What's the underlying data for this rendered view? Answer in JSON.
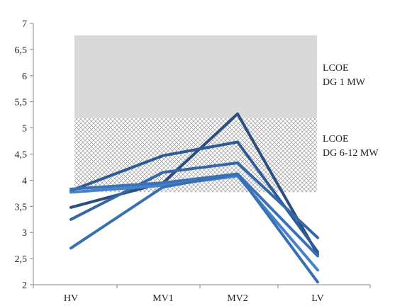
{
  "chart_data": {
    "type": "line",
    "title": "",
    "xlabel": "",
    "ylabel": "",
    "categories": [
      "HV",
      "MV1",
      "MV2",
      "LV"
    ],
    "ylim": [
      2,
      7
    ],
    "yticks": [
      "2",
      "2,5",
      "3",
      "3,5",
      "4",
      "4,5",
      "5",
      "5,5",
      "6",
      "6,5",
      "7"
    ],
    "grid": false,
    "series": [
      {
        "values": [
          3.48,
          3.95,
          5.27,
          2.58
        ],
        "color": "#2a4f7f"
      },
      {
        "values": [
          3.8,
          4.47,
          4.73,
          2.63
        ],
        "color": "#2e5b96"
      },
      {
        "values": [
          3.25,
          4.15,
          4.33,
          2.9
        ],
        "color": "#3566a8"
      },
      {
        "values": [
          3.83,
          3.95,
          4.12,
          2.55
        ],
        "color": "#3a72b8"
      },
      {
        "values": [
          3.77,
          3.9,
          4.08,
          2.28
        ],
        "color": "#4682c8"
      },
      {
        "values": [
          2.7,
          3.87,
          4.12,
          2.05
        ],
        "color": "#3a6fb3"
      }
    ],
    "bands": [
      {
        "label_line1": "LCOE",
        "label_line2": "DG 1 MW",
        "y_from": 4.8,
        "y_to": 6.77,
        "style": "solid",
        "color": "#d9d9d9"
      },
      {
        "label_line1": "LCOE",
        "label_line2": "DG 6-12 MW",
        "y_from": 3.77,
        "y_to": 5.2,
        "style": "hatch",
        "color": "#9a9a9a"
      }
    ]
  }
}
